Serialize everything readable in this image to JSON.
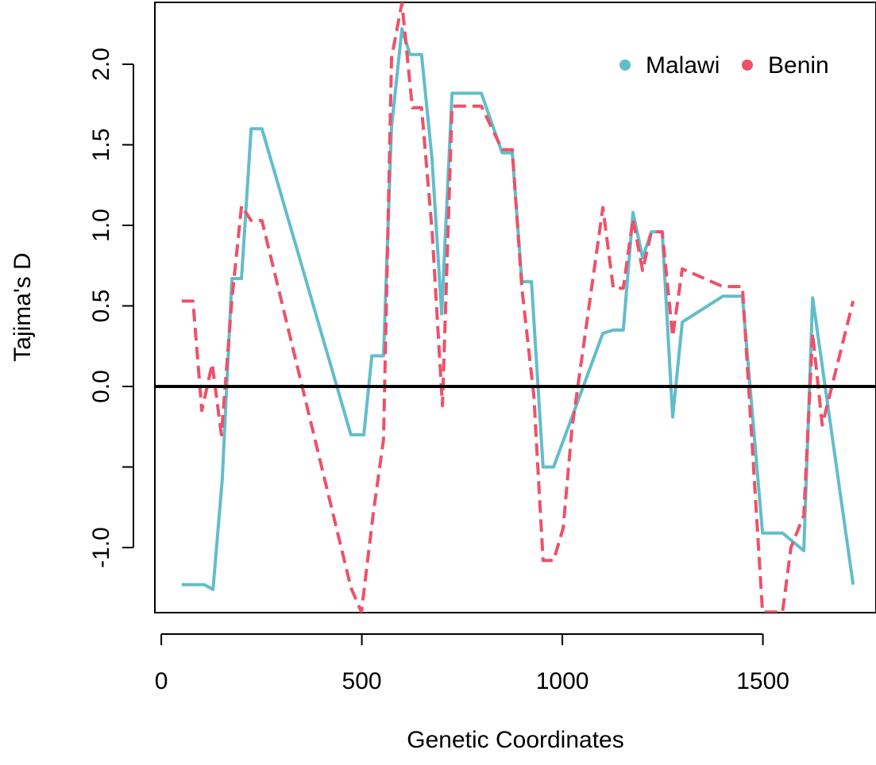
{
  "chart_data": {
    "type": "line",
    "xlabel": "Genetic Coordinates",
    "ylabel": "Tajima's D",
    "xlim": [
      -16,
      1782
    ],
    "ylim": [
      -1.404,
      2.384
    ],
    "xticks": [
      0,
      500,
      1000,
      1500
    ],
    "yticks": [
      {
        "value": -1.0,
        "label": "-1.0"
      },
      {
        "value": -0.5,
        "label": null
      },
      {
        "value": 0,
        "label": "0.0"
      },
      {
        "value": 0.5,
        "label": "0.5"
      },
      {
        "value": 1.0,
        "label": "1.0"
      },
      {
        "value": 1.5,
        "label": "1.5"
      },
      {
        "value": 2.0,
        "label": "2.0"
      }
    ],
    "hline": 0,
    "legend": "topright",
    "series": [
      {
        "name": "Malawi",
        "color": "#62BDCB",
        "dash": false,
        "x": [
          51,
          107,
          129,
          152,
          176,
          200,
          224,
          251,
          473,
          505,
          525,
          554,
          574,
          600,
          620,
          649,
          675,
          699,
          725,
          798,
          850,
          875,
          899,
          923,
          952,
          978,
          1101,
          1127,
          1152,
          1176,
          1200,
          1222,
          1249,
          1275,
          1299,
          1400,
          1449,
          1499,
          1549,
          1602,
          1624,
          1725
        ],
        "values": [
          -1.23,
          -1.23,
          -1.26,
          -0.58,
          0.67,
          0.67,
          1.6,
          1.6,
          -0.3,
          -0.3,
          0.19,
          0.19,
          1.61,
          2.22,
          2.06,
          2.06,
          1.41,
          0.45,
          1.82,
          1.82,
          1.45,
          1.45,
          0.65,
          0.65,
          -0.5,
          -0.5,
          0.33,
          0.35,
          0.35,
          1.08,
          0.8,
          0.96,
          0.96,
          -0.19,
          0.4,
          0.56,
          0.56,
          -0.91,
          -0.91,
          -1.02,
          0.55,
          -1.23
        ]
      },
      {
        "name": "Benin",
        "color": "#EE5168",
        "dash": true,
        "x": [
          51,
          79,
          101,
          127,
          150,
          176,
          200,
          224,
          251,
          473,
          499,
          529,
          554,
          574,
          600,
          626,
          649,
          675,
          701,
          725,
          798,
          850,
          875,
          899,
          929,
          952,
          978,
          1002,
          1024,
          1101,
          1127,
          1152,
          1176,
          1200,
          1222,
          1249,
          1275,
          1299,
          1400,
          1449,
          1499,
          1549,
          1570,
          1602,
          1624,
          1648,
          1725
        ],
        "values": [
          0.53,
          0.53,
          -0.15,
          0.14,
          -0.3,
          0.54,
          1.12,
          1.03,
          1.03,
          -1.25,
          -1.4,
          -0.78,
          -0.33,
          2.04,
          2.38,
          1.73,
          1.73,
          0.97,
          -0.12,
          1.74,
          1.74,
          1.47,
          1.47,
          0.61,
          -0.06,
          -1.08,
          -1.08,
          -0.88,
          -0.26,
          1.11,
          0.61,
          0.61,
          1.04,
          0.72,
          0.96,
          0.96,
          0.31,
          0.73,
          0.62,
          0.62,
          -1.4,
          -1.4,
          -1.0,
          -0.8,
          0.33,
          -0.24,
          0.53
        ]
      }
    ]
  }
}
